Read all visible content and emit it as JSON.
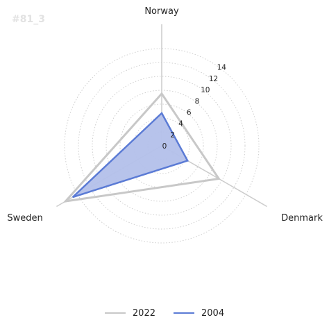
{
  "watermark": "#81_3",
  "chart_data": {
    "type": "radar",
    "categories": [
      "Norway",
      "Denmark",
      "Sweden"
    ],
    "radial_ticks": [
      0,
      2,
      4,
      6,
      8,
      10,
      12,
      14
    ],
    "rlim": [
      0,
      17.5
    ],
    "grid": true,
    "legend_position": "bottom",
    "series": [
      {
        "name": "2022",
        "values": [
          7.5,
          9.5,
          16
        ],
        "color": "#c8c8c8",
        "fill": "none"
      },
      {
        "name": "2004",
        "values": [
          4.7,
          4.3,
          14.8
        ],
        "color": "#5b7bd5",
        "fill": "#b3c0ea"
      }
    ]
  },
  "legend": [
    {
      "label": "2022",
      "color": "#c8c8c8"
    },
    {
      "label": "2004",
      "color": "#5b7bd5"
    }
  ]
}
